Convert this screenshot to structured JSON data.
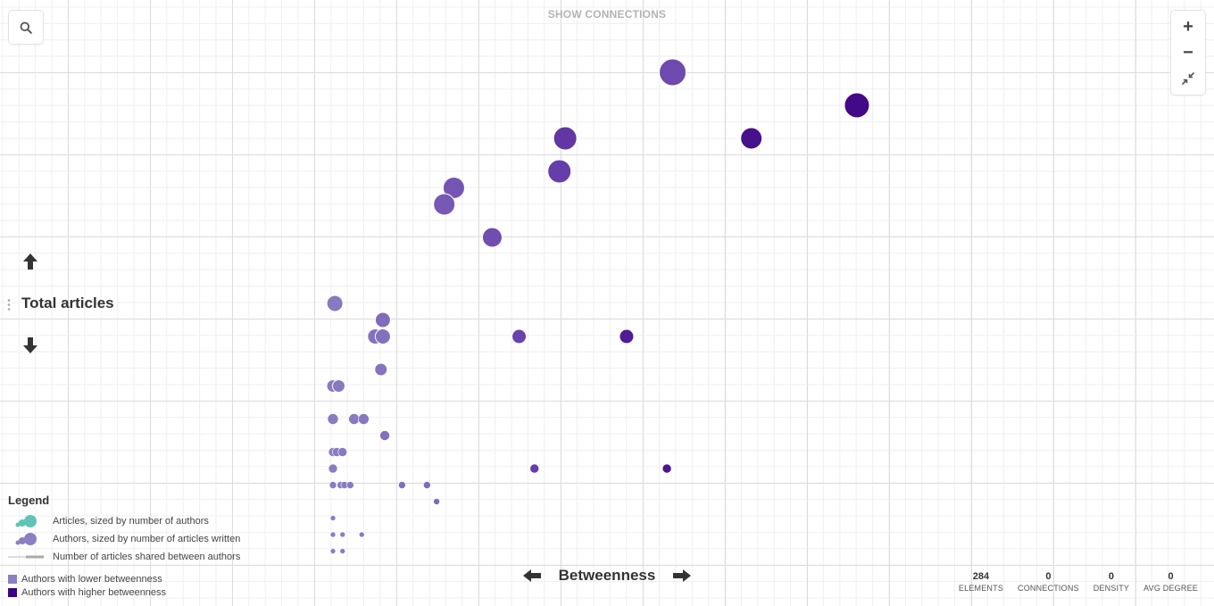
{
  "toolbar": {
    "show_connections": "SHOW CONNECTIONS"
  },
  "zoom": {
    "in_label": "+",
    "out_label": "−"
  },
  "axes": {
    "y_title": "Total articles",
    "x_title": "Betweenness"
  },
  "legend": {
    "title": "Legend",
    "articles": "Articles, sized by number of authors",
    "authors": "Authors, sized by number of articles written",
    "shared": "Number of articles shared between authors",
    "lower": "Authors with lower betweenness",
    "higher": "Authors with higher betweenness"
  },
  "stats": [
    {
      "value": "284",
      "label": "ELEMENTS"
    },
    {
      "value": "0",
      "label": "CONNECTIONS"
    },
    {
      "value": "0",
      "label": "DENSITY"
    },
    {
      "value": "0",
      "label": "AVG DEGREE"
    }
  ],
  "colors": {
    "article": "#5fc4b6",
    "author_low": "#8c7fc2",
    "author_mid": "#6b45ad",
    "author_high": "#3d0082",
    "shared_line": "#bdbdbd"
  },
  "icons": [
    "search-icon",
    "fit-screen-icon",
    "arrow-up-icon",
    "arrow-down-icon",
    "arrow-left-icon",
    "arrow-right-icon"
  ],
  "nodes": [
    {
      "b": 17.7,
      "a": 12,
      "s": 15,
      "t": 0.46
    },
    {
      "b": 27.3,
      "a": 11,
      "s": 14,
      "t": 0.93
    },
    {
      "b": 12.1,
      "a": 10,
      "s": 13,
      "t": 0.6
    },
    {
      "b": 11.8,
      "a": 9,
      "s": 13,
      "t": 0.55
    },
    {
      "b": 21.8,
      "a": 10,
      "s": 12,
      "t": 0.88
    },
    {
      "b": 6.3,
      "a": 8.5,
      "s": 12,
      "t": 0.36
    },
    {
      "b": 5.8,
      "a": 8,
      "s": 12,
      "t": 0.33
    },
    {
      "b": 8.3,
      "a": 7,
      "s": 11,
      "t": 0.43
    },
    {
      "b": 0.1,
      "a": 5,
      "s": 9,
      "t": 0.05
    },
    {
      "b": 2.6,
      "a": 4.5,
      "s": 8.5,
      "t": 0.17
    },
    {
      "b": 2.2,
      "a": 4,
      "s": 8.5,
      "t": 0.12
    },
    {
      "b": 2.6,
      "a": 4,
      "s": 8.5,
      "t": 0.12
    },
    {
      "b": 9.7,
      "a": 4,
      "s": 8,
      "t": 0.52
    },
    {
      "b": 15.3,
      "a": 4,
      "s": 8,
      "t": 0.8
    },
    {
      "b": 2.5,
      "a": 3,
      "s": 7,
      "t": 0.1
    },
    {
      "b": 0,
      "a": 2.5,
      "s": 7,
      "t": 0.03
    },
    {
      "b": 0.3,
      "a": 2.5,
      "s": 7,
      "t": 0.04
    },
    {
      "b": 0,
      "a": 1.5,
      "s": 6,
      "t": 0.03
    },
    {
      "b": 1.1,
      "a": 1.5,
      "s": 6,
      "t": 0.05
    },
    {
      "b": 1.6,
      "a": 1.5,
      "s": 6,
      "t": 0.06
    },
    {
      "b": 2.7,
      "a": 1,
      "s": 5.5,
      "t": 0.12
    },
    {
      "b": 0,
      "a": 0.5,
      "s": 5,
      "t": 0.02
    },
    {
      "b": 0.2,
      "a": 0.5,
      "s": 5,
      "t": 0.03
    },
    {
      "b": 0.5,
      "a": 0.5,
      "s": 5,
      "t": 0.04
    },
    {
      "b": 0,
      "a": 0,
      "s": 5,
      "t": 0.02
    },
    {
      "b": 10.5,
      "a": 0,
      "s": 5,
      "t": 0.56
    },
    {
      "b": 17.4,
      "a": 0,
      "s": 5,
      "t": 0.85
    },
    {
      "b": 0,
      "a": -0.5,
      "s": 4,
      "t": 0.02
    },
    {
      "b": 0.4,
      "a": -0.5,
      "s": 4,
      "t": 0.03
    },
    {
      "b": 0.6,
      "a": -0.5,
      "s": 4,
      "t": 0.03
    },
    {
      "b": 0.9,
      "a": -0.5,
      "s": 4,
      "t": 0.04
    },
    {
      "b": 3.6,
      "a": -0.5,
      "s": 4,
      "t": 0.14
    },
    {
      "b": 4.9,
      "a": -0.5,
      "s": 4,
      "t": 0.18
    },
    {
      "b": 5.4,
      "a": -1,
      "s": 3.5,
      "t": 0.2
    },
    {
      "b": 0,
      "a": -1.5,
      "s": 3,
      "t": 0.02
    },
    {
      "b": 0,
      "a": -2,
      "s": 3,
      "t": 0.02
    },
    {
      "b": 0.5,
      "a": -2,
      "s": 3,
      "t": 0.02
    },
    {
      "b": 1.5,
      "a": -2,
      "s": 3,
      "t": 0.05
    },
    {
      "b": 0,
      "a": -2.5,
      "s": 3,
      "t": 0.02
    },
    {
      "b": 0.5,
      "a": -2.5,
      "s": 3,
      "t": 0.02
    }
  ]
}
